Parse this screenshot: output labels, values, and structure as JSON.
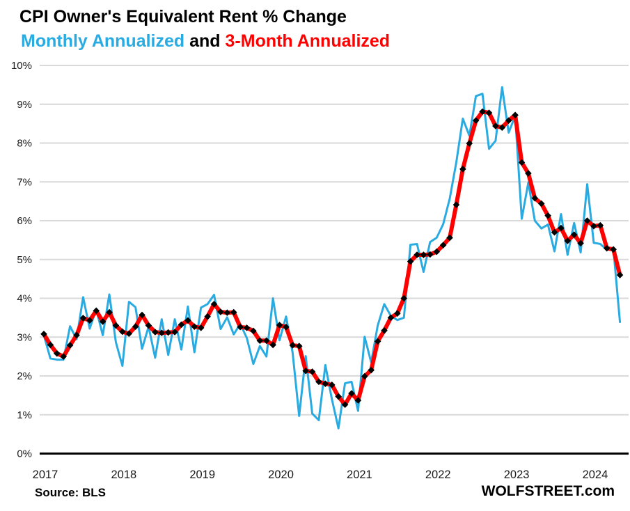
{
  "title": "CPI Owner's Equivalent Rent % Change",
  "subtitle": {
    "part_blue": "Monthly Annualized",
    "part_mid": " and ",
    "part_red": "3-Month Annualized"
  },
  "footer": {
    "source": "Source: BLS",
    "watermark": "WOLFSTREET.com"
  },
  "colors": {
    "blue": "#29ABE2",
    "red": "#FF0000",
    "black": "#000000",
    "grid": "#D9D9D9",
    "axis_text": "#1A1A1A"
  },
  "chart_data": {
    "type": "line",
    "title": "CPI Owner's Equivalent Rent % Change",
    "subtitle": "Monthly Annualized and 3-Month Annualized",
    "x_start": "2017-01",
    "x_end": "2024-05",
    "months_per_point": 1,
    "x_tick_labels": [
      "2017",
      "2018",
      "2019",
      "2020",
      "2021",
      "2022",
      "2023",
      "2024"
    ],
    "y_tick_labels": [
      "0%",
      "1%",
      "2%",
      "3%",
      "4%",
      "5%",
      "6%",
      "7%",
      "8%",
      "9%",
      "10%"
    ],
    "ylim": [
      0,
      10
    ],
    "grid": true,
    "legend_position": "subtitle",
    "series": [
      {
        "name": "Monthly Annualized",
        "color_key": "blue",
        "marker": "none",
        "line_width": 3,
        "values": [
          3.05,
          2.45,
          2.42,
          2.42,
          3.28,
          2.95,
          4.03,
          3.22,
          3.72,
          3.05,
          4.1,
          2.87,
          2.26,
          3.91,
          3.77,
          2.7,
          3.27,
          2.47,
          3.46,
          2.54,
          3.46,
          2.68,
          3.79,
          2.61,
          3.76,
          3.85,
          4.09,
          3.21,
          3.51,
          3.07,
          3.34,
          2.98,
          2.31,
          2.77,
          2.5,
          4.0,
          2.92,
          3.53,
          2.6,
          0.97,
          2.51,
          1.03,
          0.86,
          2.28,
          1.4,
          0.65,
          1.81,
          1.85,
          1.1,
          3.01,
          2.35,
          3.3,
          3.85,
          3.55,
          3.44,
          3.5,
          5.38,
          5.4,
          4.68,
          5.45,
          5.56,
          5.91,
          6.57,
          7.5,
          8.63,
          8.19,
          9.21,
          9.27,
          7.85,
          8.06,
          9.44,
          8.27,
          8.7,
          6.05,
          6.98,
          6.0,
          5.8,
          5.9,
          5.21,
          6.17,
          5.12,
          5.94,
          5.18,
          6.94,
          5.43,
          5.4,
          5.25,
          5.28,
          3.39
        ]
      },
      {
        "name": "3-Month Annualized",
        "color_key": "red",
        "marker": "black-diamond",
        "line_width": 6,
        "values": [
          3.08,
          2.8,
          2.58,
          2.5,
          2.79,
          3.05,
          3.49,
          3.43,
          3.68,
          3.4,
          3.64,
          3.3,
          3.14,
          3.09,
          3.27,
          3.57,
          3.3,
          3.13,
          3.11,
          3.12,
          3.13,
          3.32,
          3.43,
          3.27,
          3.24,
          3.53,
          3.85,
          3.65,
          3.63,
          3.64,
          3.26,
          3.24,
          3.16,
          2.91,
          2.91,
          2.8,
          3.31,
          3.26,
          2.79,
          2.77,
          2.13,
          2.11,
          1.85,
          1.8,
          1.77,
          1.47,
          1.26,
          1.55,
          1.37,
          1.99,
          2.15,
          2.89,
          3.17,
          3.5,
          3.61,
          4.0,
          4.95,
          5.12,
          5.12,
          5.13,
          5.2,
          5.37,
          5.56,
          6.41,
          7.33,
          7.99,
          8.58,
          8.81,
          8.78,
          8.44,
          8.4,
          8.58,
          8.72,
          7.5,
          7.22,
          6.58,
          6.44,
          6.13,
          5.7,
          5.81,
          5.48,
          5.64,
          5.42,
          6.0,
          5.86,
          5.88,
          5.29,
          5.26,
          4.6
        ]
      }
    ]
  }
}
